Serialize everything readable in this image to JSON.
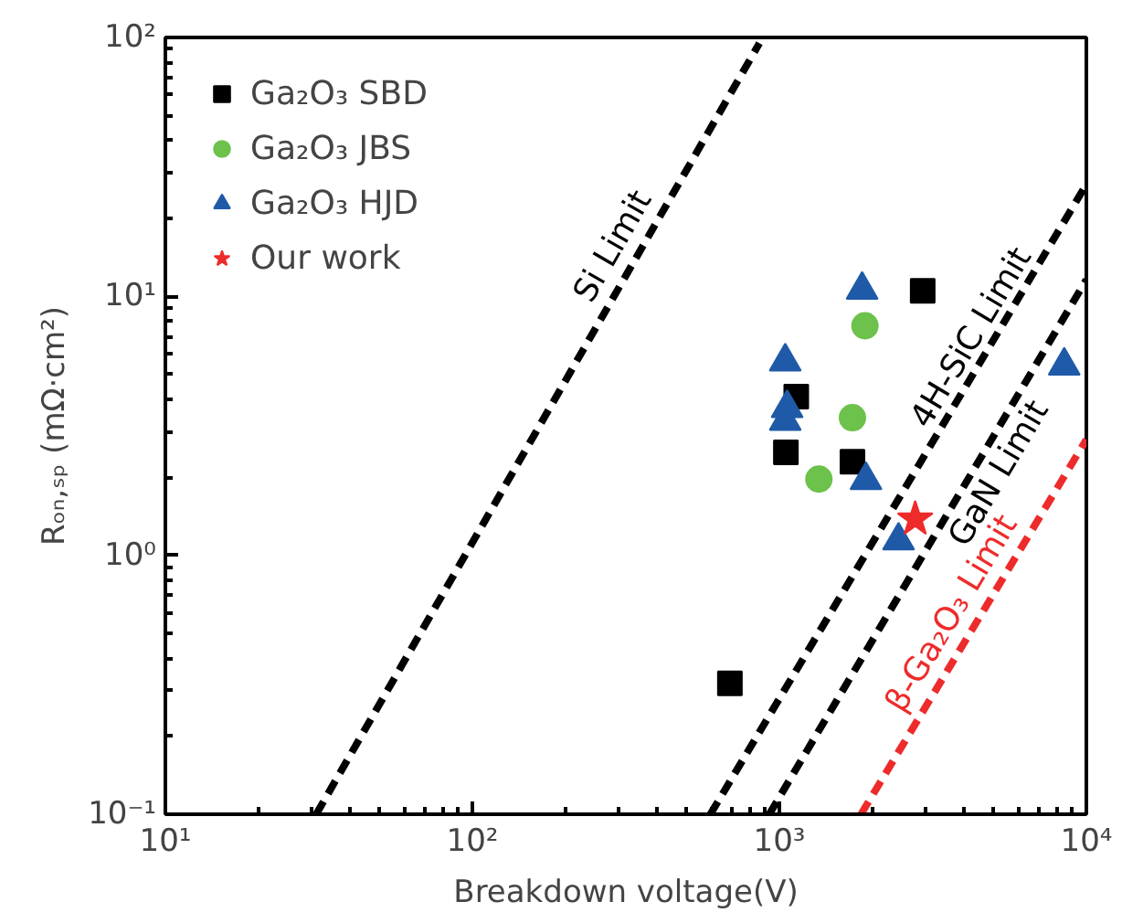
{
  "chart_data": {
    "type": "scatter",
    "xlabel": "Breakdown voltage(V)",
    "ylabel": "Rₒₙ,ₛₚ (mΩ·cm²)",
    "log": "xy",
    "grid": false,
    "legend": "top left",
    "xlim": [
      10,
      10000
    ],
    "ylim": [
      0.1,
      100
    ],
    "xticks": [
      {
        "value": 10,
        "label": "10¹"
      },
      {
        "value": 100,
        "label": "10²"
      },
      {
        "value": 1000,
        "label": "10³"
      },
      {
        "value": 10000,
        "label": "10⁴"
      }
    ],
    "yticks": [
      {
        "value": 0.1,
        "label": "10⁻¹"
      },
      {
        "value": 1,
        "label": "10⁰"
      },
      {
        "value": 10,
        "label": "10¹"
      },
      {
        "value": 100,
        "label": "10²"
      }
    ],
    "series": [
      {
        "name": "Ga₂O₃ SBD",
        "color": "#000000",
        "marker": "square",
        "x": [
          2930,
          1135,
          1050,
          1730,
          690
        ],
        "values": [
          10.5,
          4.1,
          2.5,
          2.3,
          0.32
        ]
      },
      {
        "name": "Ga₂O₃ JBS",
        "color": "#6cc24a",
        "marker": "circle",
        "x": [
          1900,
          1730,
          1345
        ],
        "values": [
          7.7,
          3.4,
          1.97
        ]
      },
      {
        "name": "Ga₂O₃ HJD",
        "color": "#1f5aa8",
        "marker": "triangle",
        "x": [
          1860,
          1045,
          1045,
          1060,
          1915,
          2445,
          8470
        ],
        "values": [
          10.6,
          5.6,
          3.3,
          3.7,
          1.95,
          1.14,
          5.4
        ]
      },
      {
        "name": "Our work",
        "color": "#ee2b2b",
        "marker": "star",
        "x": [
          2770
        ],
        "values": [
          1.38
        ]
      },
      {
        "name": "Si Limit",
        "type": "line",
        "line_style": "dashed",
        "color": "#000000",
        "x": [
          31,
          861
        ],
        "values": [
          0.1,
          95
        ]
      },
      {
        "name": "4H-SiC Limit",
        "type": "line",
        "line_style": "dashed",
        "color": "#000000",
        "x": [
          596,
          10000
        ],
        "values": [
          0.1,
          27.1
        ]
      },
      {
        "name": "GaN Limit",
        "type": "line",
        "line_style": "dashed",
        "color": "#000000",
        "x": [
          927,
          10000
        ],
        "values": [
          0.1,
          11.6
        ]
      },
      {
        "name": "β-Ga₂O₃ Limit",
        "type": "line",
        "line_style": "dashed",
        "color": "#ee2b2b",
        "x": [
          1845,
          10000
        ],
        "values": [
          0.1,
          2.8
        ]
      }
    ]
  }
}
